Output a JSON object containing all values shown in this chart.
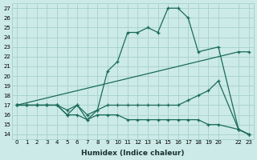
{
  "xlabel": "Humidex (Indice chaleur)",
  "bg_color": "#cceae8",
  "grid_color": "#aad4d0",
  "line_color": "#1a6b5a",
  "xlim": [
    -0.5,
    23.5
  ],
  "ylim": [
    13.5,
    27.5
  ],
  "xticks": [
    0,
    1,
    2,
    3,
    4,
    5,
    6,
    7,
    8,
    9,
    10,
    11,
    12,
    13,
    14,
    15,
    16,
    17,
    18,
    19,
    20,
    22,
    23
  ],
  "yticks": [
    14,
    15,
    16,
    17,
    18,
    19,
    20,
    21,
    22,
    23,
    24,
    25,
    26,
    27
  ],
  "lines": [
    {
      "x": [
        0,
        1,
        2,
        3,
        4,
        5,
        6,
        7,
        8,
        9,
        10,
        11,
        12,
        13,
        14,
        15,
        16,
        17,
        18,
        20,
        22,
        23
      ],
      "y": [
        17,
        17,
        17,
        17,
        17,
        16,
        17,
        15.5,
        16.5,
        20.5,
        21.5,
        24.5,
        24.5,
        25,
        24.5,
        27,
        27,
        26,
        22.5,
        23,
        14.5,
        14
      ]
    },
    {
      "x": [
        0,
        22,
        23
      ],
      "y": [
        17,
        22.5,
        22.5
      ]
    },
    {
      "x": [
        0,
        1,
        2,
        3,
        4,
        5,
        6,
        7,
        8,
        9,
        10,
        11,
        12,
        13,
        14,
        15,
        16,
        17,
        18,
        19,
        20,
        22,
        23
      ],
      "y": [
        17,
        17,
        17,
        17,
        17,
        16.5,
        17,
        16,
        16.5,
        17,
        17,
        17,
        17,
        17,
        17,
        17,
        17,
        17.5,
        18,
        18.5,
        19.5,
        14.5,
        14
      ]
    },
    {
      "x": [
        0,
        1,
        2,
        3,
        4,
        5,
        6,
        7,
        8,
        9,
        10,
        11,
        12,
        13,
        14,
        15,
        16,
        17,
        18,
        19,
        20,
        22,
        23
      ],
      "y": [
        17,
        17,
        17,
        17,
        17,
        16,
        16,
        15.5,
        16,
        16,
        16,
        15.5,
        15.5,
        15.5,
        15.5,
        15.5,
        15.5,
        15.5,
        15.5,
        15,
        15,
        14.5,
        14
      ]
    }
  ]
}
